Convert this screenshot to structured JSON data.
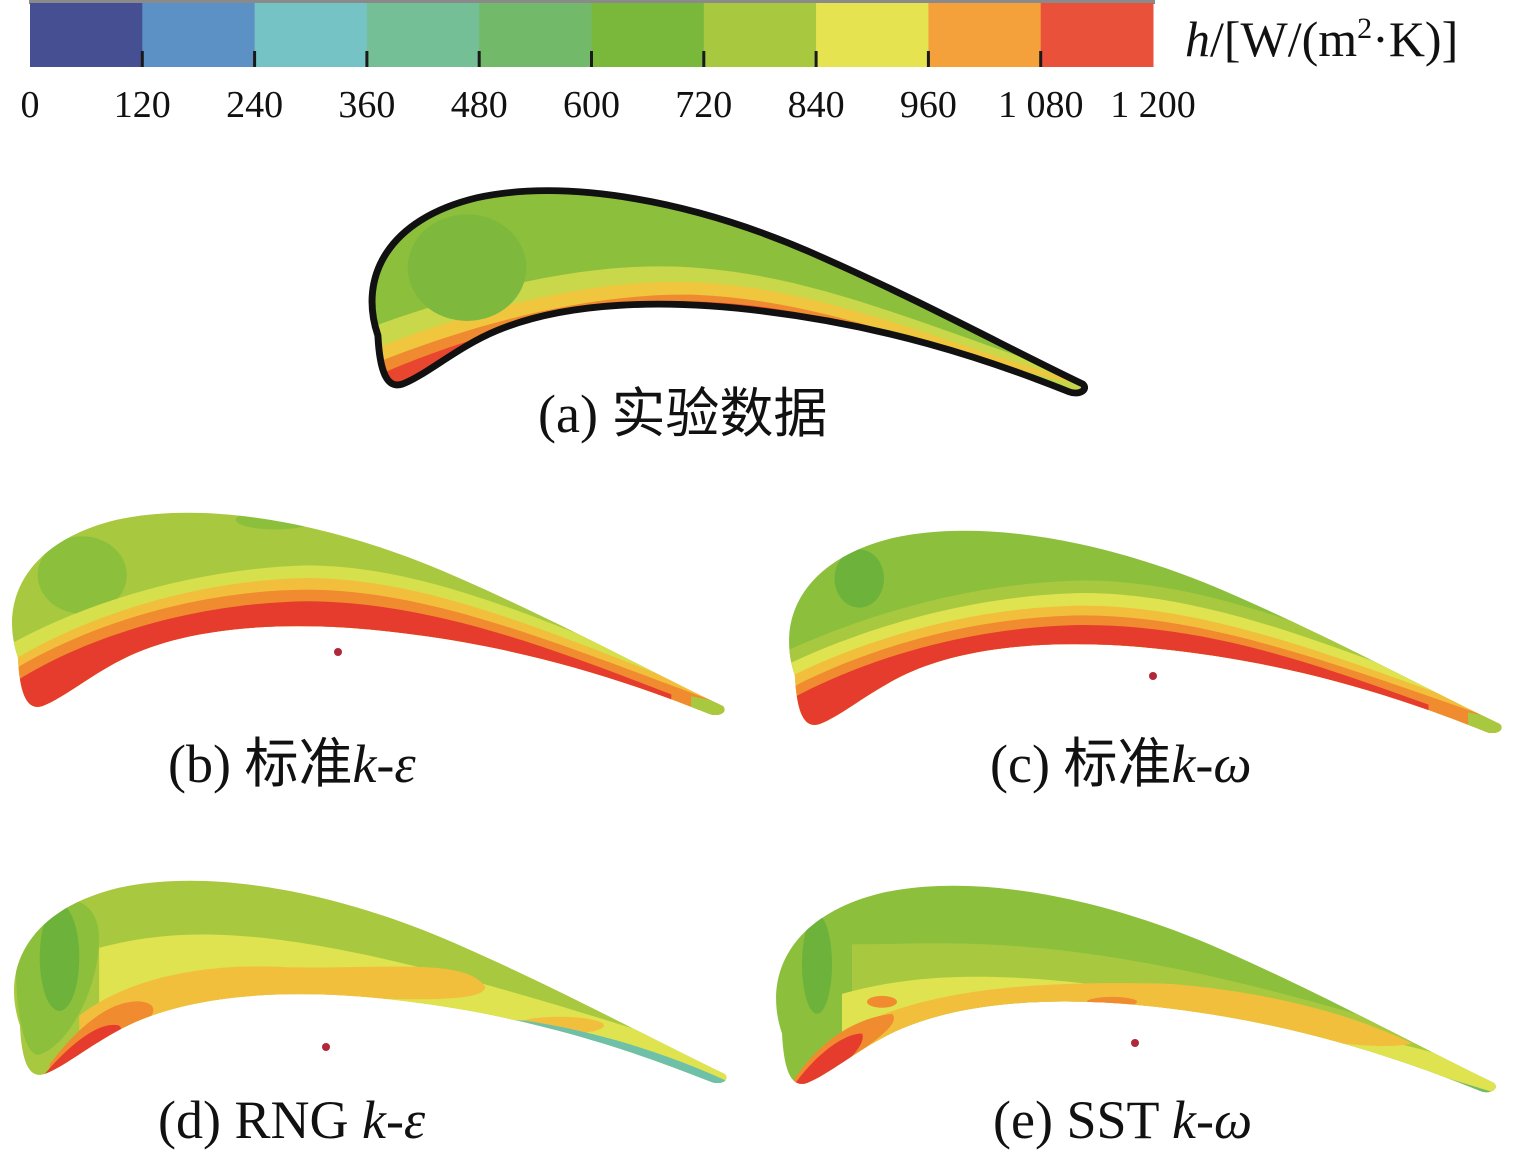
{
  "colorbar": {
    "unit_var": "h",
    "unit_rest_a": "/[W/(m",
    "unit_sup": "2",
    "unit_rest_b": "·K)]",
    "ticks": [
      "0",
      "120",
      "240",
      "360",
      "480",
      "600",
      "720",
      "840",
      "960",
      "1 080",
      "1 200"
    ],
    "colors": [
      "#474f93",
      "#5b91c4",
      "#76c3c5",
      "#74bf96",
      "#73b96a",
      "#7ab83c",
      "#a8c93f",
      "#e5e450",
      "#f4a03b",
      "#e9513a"
    ]
  },
  "panels": [
    {
      "id": "a",
      "prefix": "(a) ",
      "label": "实验数据",
      "italic_suffix": ""
    },
    {
      "id": "b",
      "prefix": "(b) ",
      "label": "标准",
      "italic_suffix": "k-ε"
    },
    {
      "id": "c",
      "prefix": "(c) ",
      "label": "标准",
      "italic_suffix": "k-ω"
    },
    {
      "id": "d",
      "prefix": "(d) ",
      "label": "RNG ",
      "italic_suffix": "k-ε"
    },
    {
      "id": "e",
      "prefix": "(e) ",
      "label": "SST ",
      "italic_suffix": "k-ω"
    }
  ],
  "palette": {
    "green_dark": "#6cb23b",
    "green": "#8cc03c",
    "yellow_green": "#b5d044",
    "yellow": "#dfe34f",
    "orange_light": "#f2bf3d",
    "orange": "#f08b30",
    "red": "#e63c2e",
    "teal": "#6fc0a8",
    "outline": "#111111",
    "dot": "#b0283a"
  }
}
